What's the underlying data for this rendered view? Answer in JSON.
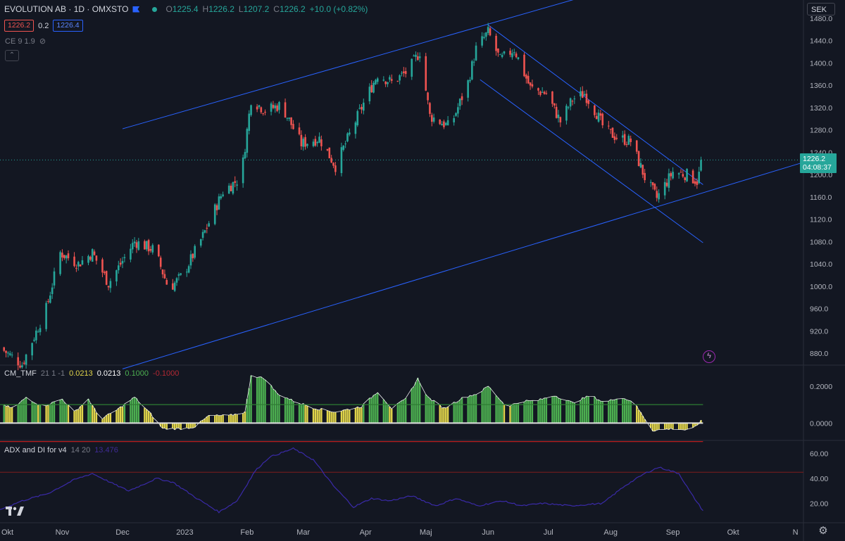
{
  "header": {
    "symbol": "EVOLUTION AB · 1D · OMXSTO",
    "o_label": "O",
    "o_value": "1225.4",
    "h_label": "H",
    "h_value": "1226.2",
    "l_label": "L",
    "l_value": "1207.2",
    "c_label": "C",
    "c_value": "1226.2",
    "change": "+10.0 (+0.82%)",
    "bid": "1226.2",
    "spread": "0.2",
    "ask": "1226.4",
    "indicator_ce": "CE 9 1.9"
  },
  "currency": "SEK",
  "price_tag": {
    "price": "1226.2",
    "countdown": "04:08:37"
  },
  "tmf_legend": {
    "name": "CM_TMF",
    "params": "21 1 -1",
    "v1": "0.0213",
    "v2": "0.0213",
    "v3": "0.1000",
    "v4": "-0.1000"
  },
  "adx_legend": {
    "name": "ADX and DI for v4",
    "params": "14 20",
    "value": "13.476"
  },
  "colors": {
    "up": "#26a69a",
    "down": "#ef5350",
    "line": "#2962ff",
    "bg": "#131722",
    "tmf_green": "#4caf50",
    "tmf_yellow": "#e0d44a",
    "adx": "#311b92"
  },
  "chart_data": [
    {
      "type": "candlestick",
      "name": "price",
      "ylim": [
        860,
        1490
      ],
      "y_ticks": [
        "1480.0",
        "1440.0",
        "1400.0",
        "1360.0",
        "1320.0",
        "1280.0",
        "1240.0",
        "1200.0",
        "1160.0",
        "1120.0",
        "1080.0",
        "1040.0",
        "1000.0",
        "960.0",
        "920.0",
        "880.0"
      ],
      "x_ticks": [
        "Okt",
        "Nov",
        "Dec",
        "2023",
        "Feb",
        "Mar",
        "Apr",
        "Maj",
        "Jun",
        "Jul",
        "Aug",
        "Sep",
        "Okt",
        "N"
      ],
      "x_range": [
        "2022-10-01",
        "2023-11-05"
      ],
      "trend_lines": [
        {
          "from": [
            "2022-12-01",
            1282
          ],
          "to": [
            "2023-07-20",
            1520
          ]
        },
        {
          "from": [
            "2022-12-01",
            852
          ],
          "to": [
            "2023-11-05",
            1222
          ]
        },
        {
          "from": [
            "2023-06-01",
            1468
          ],
          "to": [
            "2023-09-16",
            1182
          ]
        },
        {
          "from": [
            "2023-05-28",
            1370
          ],
          "to": [
            "2023-09-16",
            1078
          ]
        }
      ],
      "waypoints": [
        [
          "2022-10-01",
          890
        ],
        [
          "2022-10-12",
          860
        ],
        [
          "2022-10-24",
          960
        ],
        [
          "2022-10-31",
          1060
        ],
        [
          "2022-11-09",
          1040
        ],
        [
          "2022-11-16",
          1060
        ],
        [
          "2022-11-24",
          1005
        ],
        [
          "2022-12-07",
          1080
        ],
        [
          "2022-12-17",
          1065
        ],
        [
          "2022-12-24",
          995
        ],
        [
          "2022-12-31",
          1020
        ],
        [
          "2023-01-10",
          1090
        ],
        [
          "2023-01-20",
          1170
        ],
        [
          "2023-01-29",
          1195
        ],
        [
          "2023-02-03",
          1335
        ],
        [
          "2023-02-10",
          1315
        ],
        [
          "2023-02-18",
          1325
        ],
        [
          "2023-02-28",
          1255
        ],
        [
          "2023-03-09",
          1265
        ],
        [
          "2023-03-17",
          1215
        ],
        [
          "2023-03-30",
          1320
        ],
        [
          "2023-04-07",
          1380
        ],
        [
          "2023-04-14",
          1365
        ],
        [
          "2023-04-22",
          1385
        ],
        [
          "2023-04-28",
          1420
        ],
        [
          "2023-05-03",
          1305
        ],
        [
          "2023-05-13",
          1285
        ],
        [
          "2023-05-22",
          1365
        ],
        [
          "2023-05-26",
          1425
        ],
        [
          "2023-06-01",
          1455
        ],
        [
          "2023-06-07",
          1405
        ],
        [
          "2023-06-14",
          1425
        ],
        [
          "2023-06-22",
          1355
        ],
        [
          "2023-06-30",
          1345
        ],
        [
          "2023-07-07",
          1295
        ],
        [
          "2023-07-13",
          1335
        ],
        [
          "2023-07-19",
          1345
        ],
        [
          "2023-07-25",
          1310
        ],
        [
          "2023-07-29",
          1280
        ],
        [
          "2023-08-05",
          1265
        ],
        [
          "2023-08-11",
          1260
        ],
        [
          "2023-08-18",
          1195
        ],
        [
          "2023-08-24",
          1158
        ],
        [
          "2023-09-01",
          1205
        ],
        [
          "2023-09-08",
          1200
        ],
        [
          "2023-09-13",
          1188
        ],
        [
          "2023-09-16",
          1226
        ]
      ],
      "last_price": 1226.2
    },
    {
      "type": "histogram",
      "name": "CM_TMF",
      "ylim": [
        -0.09,
        0.31
      ],
      "y_ticks": [
        "0.2000",
        "0.0000"
      ],
      "levels": [
        0.1,
        0.0,
        -0.1
      ],
      "waypoints": [
        [
          "2022-10-01",
          0.1
        ],
        [
          "2022-10-08",
          0.08
        ],
        [
          "2022-10-14",
          0.14
        ],
        [
          "2022-10-22",
          0.09
        ],
        [
          "2022-11-01",
          0.13
        ],
        [
          "2022-11-07",
          0.06
        ],
        [
          "2022-11-14",
          0.13
        ],
        [
          "2022-11-20",
          0.02
        ],
        [
          "2022-11-28",
          0.07
        ],
        [
          "2022-12-07",
          0.14
        ],
        [
          "2022-12-15",
          0.05
        ],
        [
          "2022-12-21",
          -0.03
        ],
        [
          "2022-12-31",
          -0.03
        ],
        [
          "2023-01-06",
          -0.02
        ],
        [
          "2023-01-13",
          0.04
        ],
        [
          "2023-01-23",
          0.04
        ],
        [
          "2023-01-31",
          0.06
        ],
        [
          "2023-02-03",
          0.26
        ],
        [
          "2023-02-10",
          0.24
        ],
        [
          "2023-02-16",
          0.16
        ],
        [
          "2023-02-24",
          0.12
        ],
        [
          "2023-03-07",
          0.08
        ],
        [
          "2023-03-17",
          0.06
        ],
        [
          "2023-03-30",
          0.09
        ],
        [
          "2023-04-07",
          0.17
        ],
        [
          "2023-04-14",
          0.08
        ],
        [
          "2023-04-21",
          0.13
        ],
        [
          "2023-04-27",
          0.24
        ],
        [
          "2023-05-02",
          0.14
        ],
        [
          "2023-05-10",
          0.08
        ],
        [
          "2023-05-20",
          0.14
        ],
        [
          "2023-05-27",
          0.16
        ],
        [
          "2023-06-01",
          0.2
        ],
        [
          "2023-06-10",
          0.09
        ],
        [
          "2023-06-19",
          0.12
        ],
        [
          "2023-06-25",
          0.12
        ],
        [
          "2023-07-04",
          0.15
        ],
        [
          "2023-07-13",
          0.11
        ],
        [
          "2023-07-22",
          0.15
        ],
        [
          "2023-07-29",
          0.11
        ],
        [
          "2023-08-05",
          0.14
        ],
        [
          "2023-08-12",
          0.12
        ],
        [
          "2023-08-17",
          0.04
        ],
        [
          "2023-08-22",
          -0.04
        ],
        [
          "2023-09-01",
          -0.03
        ],
        [
          "2023-09-10",
          -0.04
        ],
        [
          "2023-09-16",
          0.02
        ]
      ]
    },
    {
      "type": "line",
      "name": "ADX and DI for v4",
      "ylim": [
        5,
        70
      ],
      "y_ticks": [
        "60.00",
        "40.00",
        "20.00"
      ],
      "threshold": 45,
      "waypoints": [
        [
          "2022-10-01",
          15
        ],
        [
          "2022-10-12",
          22
        ],
        [
          "2022-10-25",
          28
        ],
        [
          "2022-11-07",
          39
        ],
        [
          "2022-11-16",
          44
        ],
        [
          "2022-11-26",
          36
        ],
        [
          "2022-12-04",
          30
        ],
        [
          "2022-12-18",
          40
        ],
        [
          "2022-12-26",
          37
        ],
        [
          "2023-01-07",
          24
        ],
        [
          "2023-01-18",
          13
        ],
        [
          "2023-01-27",
          22
        ],
        [
          "2023-02-05",
          46
        ],
        [
          "2023-02-12",
          57
        ],
        [
          "2023-02-24",
          64
        ],
        [
          "2023-03-06",
          55
        ],
        [
          "2023-03-16",
          34
        ],
        [
          "2023-03-26",
          17
        ],
        [
          "2023-04-04",
          24
        ],
        [
          "2023-04-13",
          22
        ],
        [
          "2023-04-24",
          26
        ],
        [
          "2023-05-06",
          18
        ],
        [
          "2023-05-16",
          24
        ],
        [
          "2023-05-27",
          18
        ],
        [
          "2023-06-08",
          22
        ],
        [
          "2023-06-18",
          18
        ],
        [
          "2023-06-28",
          20
        ],
        [
          "2023-07-12",
          18
        ],
        [
          "2023-07-28",
          20
        ],
        [
          "2023-08-08",
          34
        ],
        [
          "2023-08-18",
          44
        ],
        [
          "2023-08-25",
          49
        ],
        [
          "2023-09-04",
          44
        ],
        [
          "2023-09-10",
          28
        ],
        [
          "2023-09-16",
          14
        ]
      ]
    }
  ]
}
